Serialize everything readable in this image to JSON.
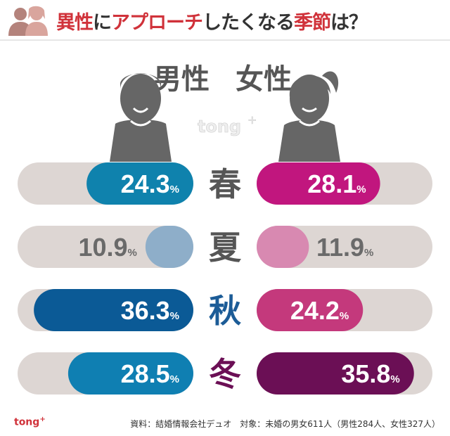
{
  "title": {
    "part1": "異性",
    "part2": "に",
    "part3": "アプローチ",
    "part4": "したくなる",
    "part5": "季節",
    "part6": "は？"
  },
  "watermark": "tong",
  "footer": {
    "logo": "tong",
    "source": "資料：結婚情報会社デュオ　対象：未婚の男女611人（男性284人、女性327人）"
  },
  "colors": {
    "title_red": "#d0323a",
    "track": "#ddd6d3",
    "figure": "#666666"
  },
  "chart_data": {
    "type": "bar",
    "layout": "butterfly",
    "unit": "%",
    "xlim": [
      0,
      40
    ],
    "categories": [
      "春",
      "夏",
      "秋",
      "冬"
    ],
    "category_colors": [
      "#555555",
      "#555555",
      "#1c5c97",
      "#6b0f55"
    ],
    "series": [
      {
        "name": "男性",
        "values": [
          24.3,
          10.9,
          36.3,
          28.5
        ],
        "colors": [
          "#0f82ad",
          "#8eaec9",
          "#0b5a96",
          "#0f7fb2"
        ]
      },
      {
        "name": "女性",
        "values": [
          28.1,
          11.9,
          24.2,
          35.8
        ],
        "colors": [
          "#c1167e",
          "#d889b1",
          "#c4397c",
          "#6b0f55"
        ]
      }
    ]
  }
}
